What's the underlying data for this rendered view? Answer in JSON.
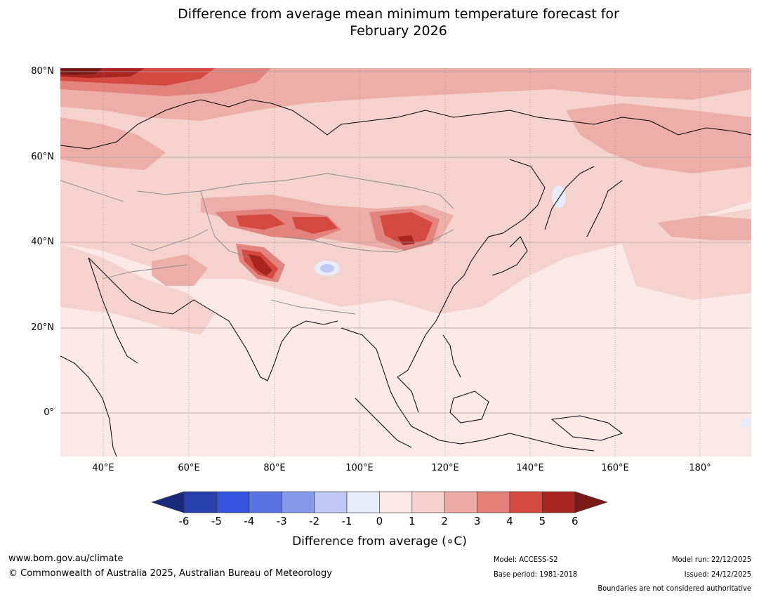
{
  "title": {
    "line1": "Difference from average mean minimum temperature forecast for",
    "line2": "February 2026"
  },
  "map": {
    "region": "Asia",
    "lat_labels": [
      "80°N",
      "60°N",
      "40°N",
      "20°N",
      "0°"
    ],
    "lon_labels": [
      "40°E",
      "60°E",
      "80°E",
      "100°E",
      "120°E",
      "140°E",
      "160°E",
      "180°"
    ]
  },
  "colorbar": {
    "ticks": [
      "-6",
      "-5",
      "-4",
      "-3",
      "-2",
      "-1",
      "0",
      "1",
      "2",
      "3",
      "4",
      "5",
      "6"
    ],
    "colors": [
      "#1a2a7a",
      "#2a3fae",
      "#3452dd",
      "#5b72e2",
      "#8797ea",
      "#c0c8f3",
      "#e8ebfa",
      "#fce8e6",
      "#f5d0cc",
      "#ecaaa6",
      "#e3807a",
      "#d44a40",
      "#a8261f",
      "#7a1a18"
    ],
    "label": "Difference from average (∘C)"
  },
  "footer": {
    "website": "www.bom.gov.au/climate",
    "copyright": "© Commonwealth of Australia 2025, Australian Bureau of Meteorology",
    "model": "Model: ACCESS-S2",
    "base_period": "Base period: 1981-2018",
    "model_run": "Model run: 22/12/2025",
    "issued": "Issued: 24/12/2025",
    "disclaimer": "Boundaries are not considered authoritative"
  }
}
